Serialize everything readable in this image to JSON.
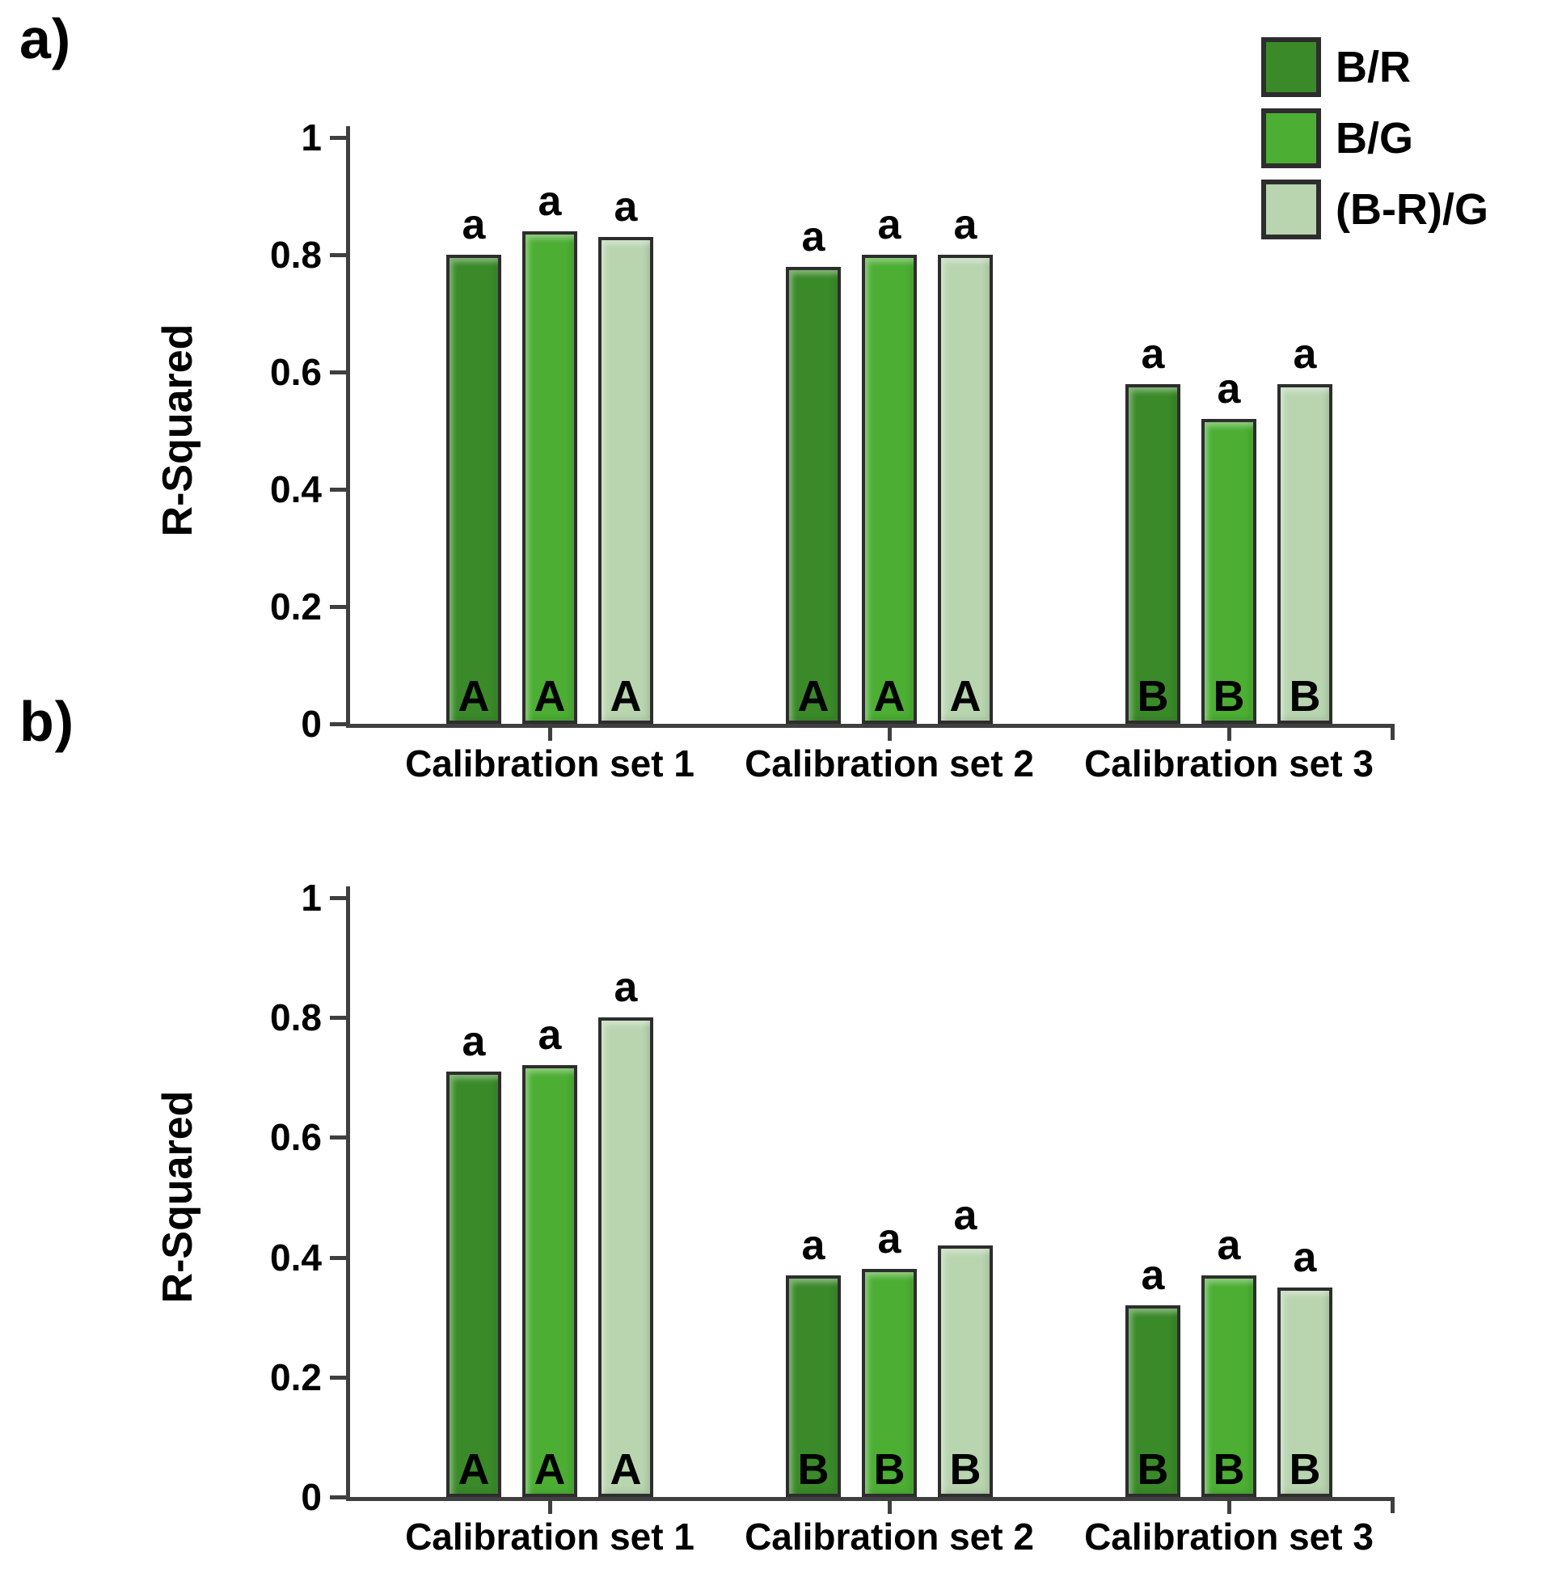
{
  "panels": {
    "a_label": "a)",
    "b_label": "b)"
  },
  "legend": {
    "position": "top-right",
    "items": [
      {
        "label": "B/R",
        "color": "#3a8a29"
      },
      {
        "label": "B/G",
        "color": "#4cae33"
      },
      {
        "label": "(B-R)/G",
        "color": "#b8d5b0"
      }
    ]
  },
  "colors": {
    "bar_border": "#2d2d2d",
    "axis": "#3f3f3f",
    "text": "#000000",
    "background": "#ffffff"
  },
  "chart_data": [
    {
      "id": "a",
      "type": "bar",
      "panel": "a)",
      "title": "",
      "xlabel": "",
      "ylabel": "R-Squared",
      "ylim": [
        0,
        1
      ],
      "yticks": [
        0,
        0.2,
        0.4,
        0.6,
        0.8,
        1
      ],
      "ytick_labels": [
        "0",
        "0.2",
        "0.4",
        "0.6",
        "0.8",
        "1"
      ],
      "grid": false,
      "legend_position": "top-right",
      "categories": [
        "Calibration set 1",
        "Calibration set 2",
        "Calibration set 3"
      ],
      "series": [
        {
          "name": "B/R",
          "color": "#3a8a29",
          "values": [
            0.8,
            0.78,
            0.58
          ]
        },
        {
          "name": "B/G",
          "color": "#4cae33",
          "values": [
            0.84,
            0.8,
            0.52
          ]
        },
        {
          "name": "(B-R)/G",
          "color": "#b8d5b0",
          "values": [
            0.83,
            0.8,
            0.58
          ]
        }
      ],
      "above_bar_labels": [
        [
          "a",
          "a",
          "a"
        ],
        [
          "a",
          "a",
          "a"
        ],
        [
          "a",
          "a",
          "a"
        ]
      ],
      "inside_bar_letters": [
        [
          "A",
          "A",
          "A"
        ],
        [
          "A",
          "A",
          "A"
        ],
        [
          "B",
          "B",
          "B"
        ]
      ]
    },
    {
      "id": "b",
      "type": "bar",
      "panel": "b)",
      "title": "",
      "xlabel": "",
      "ylabel": "R-Squared",
      "ylim": [
        0,
        1
      ],
      "yticks": [
        0,
        0.2,
        0.4,
        0.6,
        0.8,
        1
      ],
      "ytick_labels": [
        "0",
        "0.2",
        "0.4",
        "0.6",
        "0.8",
        "1"
      ],
      "grid": false,
      "legend_position": "none",
      "categories": [
        "Calibration set 1",
        "Calibration set 2",
        "Calibration set 3"
      ],
      "series": [
        {
          "name": "B/R",
          "color": "#3a8a29",
          "values": [
            0.71,
            0.37,
            0.32
          ]
        },
        {
          "name": "B/G",
          "color": "#4cae33",
          "values": [
            0.72,
            0.38,
            0.37
          ]
        },
        {
          "name": "(B-R)/G",
          "color": "#b8d5b0",
          "values": [
            0.8,
            0.42,
            0.35
          ]
        }
      ],
      "above_bar_labels": [
        [
          "a",
          "a",
          "a"
        ],
        [
          "a",
          "a",
          "a"
        ],
        [
          "a",
          "a",
          "a"
        ]
      ],
      "inside_bar_letters": [
        [
          "A",
          "A",
          "A"
        ],
        [
          "B",
          "B",
          "B"
        ],
        [
          "B",
          "B",
          "B"
        ]
      ]
    }
  ]
}
